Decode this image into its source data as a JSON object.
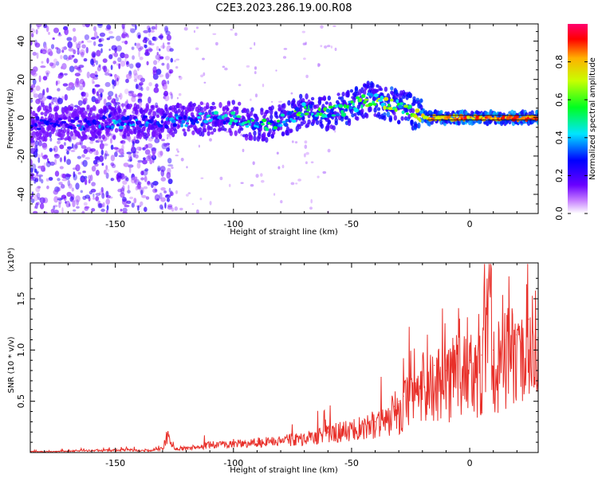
{
  "figure": {
    "title": "C2E3.2023.286.19.00.R08"
  },
  "chart_data": [
    {
      "type": "heatmap",
      "title": "C2E3.2023.286.19.00.R08",
      "xlabel": "Height of straight line (km)",
      "ylabel": "Frequency (Hz)",
      "xlim": [
        -186,
        29
      ],
      "ylim": [
        -50,
        49
      ],
      "xticks": [
        -150,
        -100,
        -50,
        0
      ],
      "xtick_labels": [
        "-150",
        "-100",
        "-50",
        "0"
      ],
      "yticks": [
        -40,
        -20,
        0,
        20,
        40
      ],
      "ytick_labels": [
        "-40",
        "-20",
        "0",
        "20",
        "40"
      ],
      "colorbar": {
        "label": "Normalized spectral amplitude",
        "ticks": [
          0.0,
          0.2,
          0.4,
          0.6,
          0.8
        ],
        "tick_labels": [
          "0.0",
          "0.2",
          "0.4",
          "0.6",
          "0.8"
        ],
        "range": [
          0,
          1
        ],
        "colormap": "rainbow (white → violet → blue → cyan → green → yellow → red)"
      },
      "ridge": {
        "description": "dominant frequency band vs height",
        "x": [
          -183,
          -165,
          -150,
          -135,
          -120,
          -100,
          -90,
          -80,
          -70,
          -60,
          -50,
          -42,
          -36,
          -30,
          -24,
          -18,
          -10,
          0,
          10,
          20,
          28
        ],
        "freq": [
          -3,
          -3,
          -2,
          -2,
          -1,
          0,
          -4,
          -2,
          4,
          2,
          6,
          10,
          8,
          6,
          3,
          0,
          0,
          0,
          0,
          0,
          0
        ],
        "peak_amplitude": [
          0.3,
          0.35,
          0.45,
          0.4,
          0.45,
          0.5,
          0.55,
          0.6,
          0.65,
          0.6,
          0.7,
          0.65,
          0.8,
          0.7,
          0.75,
          0.85,
          0.9,
          0.9,
          0.9,
          0.9,
          0.9
        ]
      },
      "scatter_bands": {
        "description": "broadband low-amplitude speckle at lower heights",
        "x_range": [
          -186,
          -126
        ],
        "freq_range": [
          -50,
          49
        ],
        "amplitude_range": [
          0.05,
          0.25
        ]
      }
    },
    {
      "type": "line",
      "xlabel": "Height of straight line (km)",
      "ylabel": "SNR (10 * v/v)",
      "y_multiplier": "(x10⁴)",
      "xlim": [
        -186,
        29
      ],
      "ylim": [
        0,
        1.85
      ],
      "xticks": [
        -150,
        -100,
        -50,
        0
      ],
      "xtick_labels": [
        "-150",
        "-100",
        "-50",
        "0"
      ],
      "yticks": [
        0.5,
        1.0,
        1.5
      ],
      "ytick_labels": [
        "0.5",
        "1.0",
        "1.5"
      ],
      "color": "#e8302a",
      "series": [
        {
          "x": [
            -186,
            -175,
            -165,
            -155,
            -145,
            -140,
            -135,
            -130,
            -128,
            -125,
            -120,
            -115,
            -110,
            -105,
            -100,
            -95,
            -90,
            -85,
            -80,
            -75,
            -70,
            -65,
            -60,
            -55,
            -50,
            -45,
            -40,
            -35,
            -32,
            -30,
            -28,
            -25,
            -20,
            -15,
            -10,
            -5,
            0,
            5,
            8,
            10,
            15,
            20,
            25,
            29
          ],
          "y": [
            0.01,
            0.01,
            0.02,
            0.02,
            0.03,
            0.02,
            0.02,
            0.04,
            0.18,
            0.04,
            0.05,
            0.06,
            0.08,
            0.09,
            0.1,
            0.09,
            0.11,
            0.12,
            0.12,
            0.14,
            0.14,
            0.18,
            0.2,
            0.22,
            0.24,
            0.28,
            0.3,
            0.32,
            0.45,
            0.5,
            0.55,
            0.8,
            0.75,
            0.85,
            0.8,
            0.95,
            0.9,
            0.95,
            1.85,
            1.0,
            1.1,
            1.15,
            1.3,
            1.25
          ]
        }
      ]
    }
  ]
}
